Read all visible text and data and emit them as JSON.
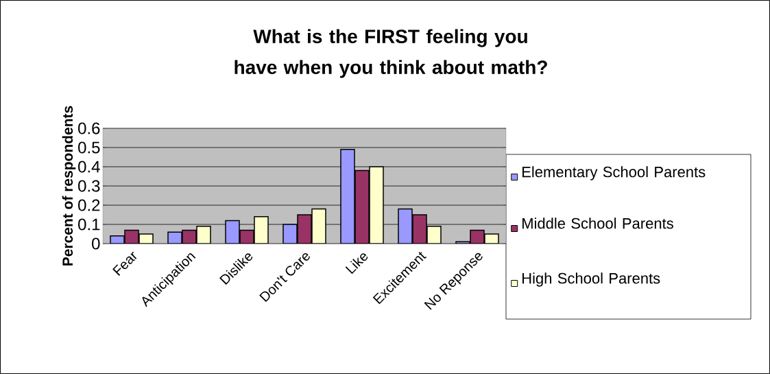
{
  "chart_data": {
    "type": "bar",
    "title": "What is the FIRST feeling you have when you think about math?",
    "ylabel": "Percent of respondents",
    "categories": [
      "Fear",
      "Anticipation",
      "Dislike",
      "Don't Care",
      "Like",
      "Excitement",
      "No Reponse"
    ],
    "series": [
      {
        "name": "Elementary School Parents",
        "color": "#9999ff",
        "values": [
          0.04,
          0.06,
          0.12,
          0.1,
          0.49,
          0.18,
          0.01
        ]
      },
      {
        "name": "Middle School Parents",
        "color": "#993366",
        "values": [
          0.07,
          0.07,
          0.07,
          0.15,
          0.38,
          0.15,
          0.07
        ]
      },
      {
        "name": "High School Parents",
        "color": "#ffffcc",
        "values": [
          0.05,
          0.09,
          0.14,
          0.18,
          0.4,
          0.09,
          0.05
        ]
      }
    ],
    "ylim": [
      0,
      0.6
    ],
    "yticks": [
      0,
      0.1,
      0.2,
      0.3,
      0.4,
      0.5,
      0.6
    ],
    "grid": "y",
    "legend": "right"
  }
}
